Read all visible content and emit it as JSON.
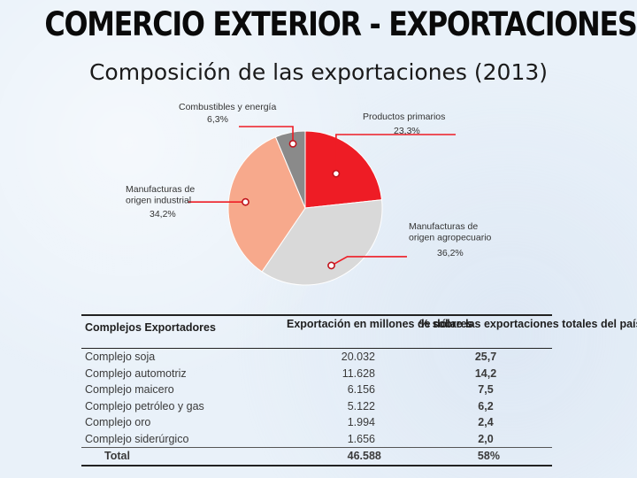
{
  "header": {
    "title": "COMERCIO EXTERIOR - EXPORTACIONES",
    "subtitle": "Composición de las exportaciones (2013)"
  },
  "chart_data": {
    "type": "pie",
    "slices": [
      {
        "label": "Productos primarios",
        "value": 23.3,
        "value_label": "23,3%",
        "color": "#ee1c25"
      },
      {
        "label": "Manufacturas de origen agropecuario",
        "value": 36.2,
        "value_label": "36,2%",
        "color": "#d9d9d9"
      },
      {
        "label": "Manufacturas de origen industrial",
        "value": 34.2,
        "value_label": "34,2%",
        "color": "#f7a98c"
      },
      {
        "label": "Combustibles y energía",
        "value": 6.3,
        "value_label": "6,3%",
        "color": "#8a8a8a"
      }
    ]
  },
  "table": {
    "headers": [
      "Complejos Exportadores",
      "Exportación en millones de dólares",
      "% sobre las exportaciones totales del país"
    ],
    "rows": [
      [
        "Complejo soja",
        "20.032",
        "25,7"
      ],
      [
        "Complejo automotriz",
        "11.628",
        "14,2"
      ],
      [
        "Complejo maicero",
        "6.156",
        "7,5"
      ],
      [
        "Complejo petróleo y gas",
        "5.122",
        "6,2"
      ],
      [
        "Complejo oro",
        "1.994",
        "2,4"
      ],
      [
        "Complejo siderúrgico",
        "1.656",
        "2,0"
      ]
    ],
    "total": [
      "Total",
      "46.588",
      "58%"
    ]
  }
}
